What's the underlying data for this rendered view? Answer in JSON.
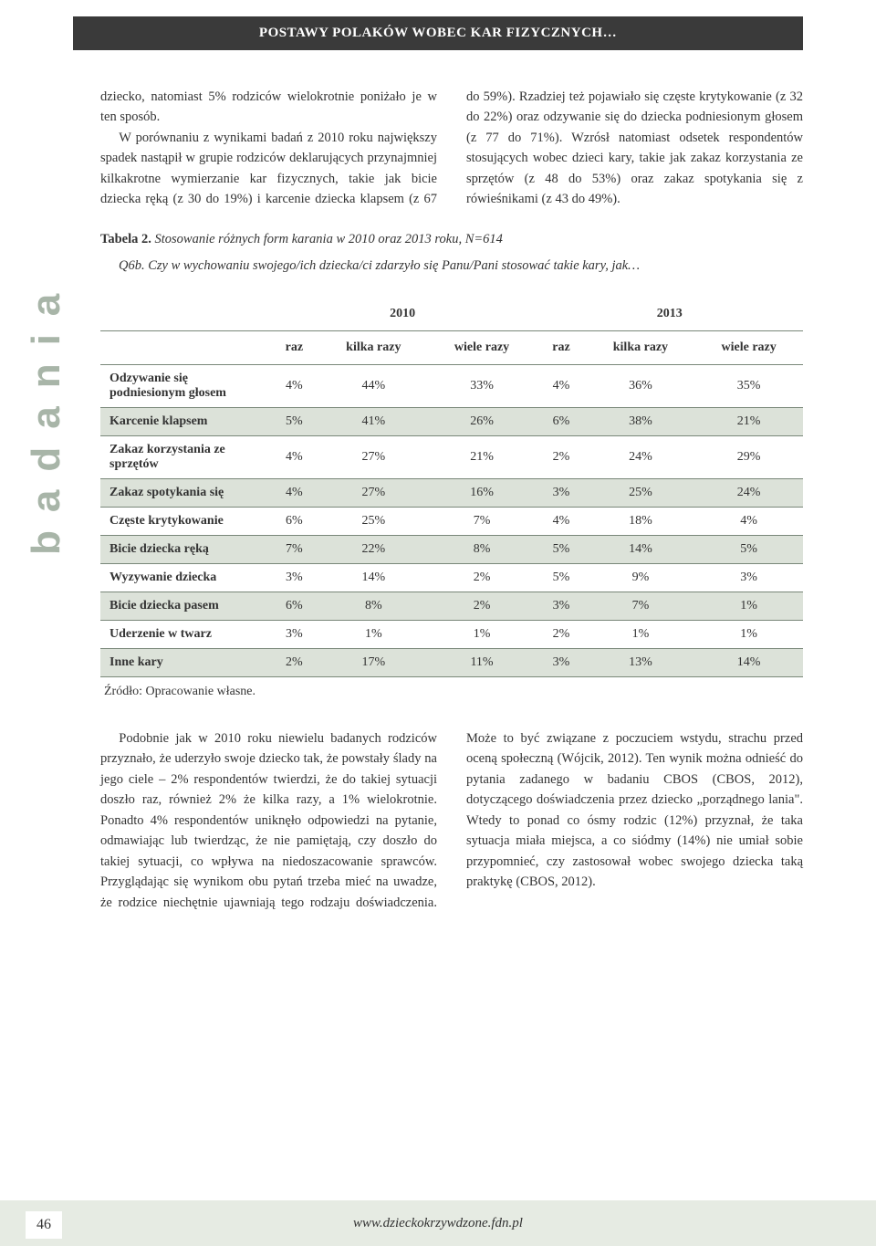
{
  "header": {
    "title": "POSTAWY POLAKÓW WOBEC KAR FIZYCZNYCH…"
  },
  "sideTab": "badania",
  "body": {
    "top_para1": "dziecko, natomiast 5% rodziców wielokrotnie poniżało je w ten sposób.",
    "top_para2": "W porównaniu z wynikami badań z 2010 roku największy spadek nastąpił w grupie rodziców deklarujących przynajmniej kilkakrotne wymierzanie kar fizycznych, takie jak bicie dziecka ręką (z 30 do 19%) i karcenie dziecka klapsem (z 67 do 59%). Rzadziej też pojawiało się częste krytykowanie (z 32 do 22%) oraz odzywanie się do dziecka podniesionym głosem (z 77 do 71%). Wzrósł natomiast odsetek respondentów stosujących wobec dzieci kary, takie jak zakaz korzystania ze sprzętów (z 48 do 53%) oraz zakaz spotykania się z rówieśnikami (z 43 do 49%).",
    "bottom_para1": "Podobnie jak w 2010 roku niewielu badanych rodziców przyznało, że uderzyło swoje dziecko tak, że powstały ślady na jego ciele – 2% respondentów twierdzi, że do takiej sytuacji doszło raz, również 2% że kilka razy, a 1% wielokrotnie. Ponadto 4% respondentów uniknęło odpowiedzi na pytanie, odmawiając lub twierdząc, że nie pamiętają, czy doszło do takiej sytuacji, co wpływa na niedoszacowanie sprawców. Przyglądając się wynikom obu pytań trzeba mieć na uwadze, że rodzice niechętnie ujawniają tego rodzaju doświadczenia. Może to być związane z poczuciem wstydu, strachu przed oceną społeczną (Wójcik, 2012). Ten wynik można odnieść do pytania zadanego w badaniu CBOS (CBOS, 2012), dotyczącego doświadczenia przez dziecko „porządnego lania\". Wtedy to ponad co ósmy rodzic (12%) przyznał, że taka sytuacja miała miejsca, a co siódmy (14%) nie umiał sobie przypomnieć, czy zastosował wobec swojego dziecka taką praktykę (CBOS, 2012)."
  },
  "table": {
    "caption_bold": "Tabela 2. ",
    "caption_ital": "Stosowanie różnych form karania w 2010 oraz 2013 roku, N=614",
    "sub_caption": "Q6b. Czy w wychowaniu swojego/ich dziecka/ci zdarzyło się Panu/Pani stosować takie kary, jak…",
    "source": "Źródło: Opracowanie własne.",
    "year_headers": [
      "2010",
      "2013"
    ],
    "sub_headers": [
      "raz",
      "kilka razy",
      "wiele razy",
      "raz",
      "kilka razy",
      "wiele razy"
    ],
    "rows": [
      {
        "label": "Odzywanie się podniesionym głosem",
        "cells": [
          "4%",
          "44%",
          "33%",
          "4%",
          "36%",
          "35%"
        ],
        "shaded": false
      },
      {
        "label": "Karcenie klapsem",
        "cells": [
          "5%",
          "41%",
          "26%",
          "6%",
          "38%",
          "21%"
        ],
        "shaded": true
      },
      {
        "label": "Zakaz korzystania ze sprzętów",
        "cells": [
          "4%",
          "27%",
          "21%",
          "2%",
          "24%",
          "29%"
        ],
        "shaded": false
      },
      {
        "label": "Zakaz spotykania się",
        "cells": [
          "4%",
          "27%",
          "16%",
          "3%",
          "25%",
          "24%"
        ],
        "shaded": true
      },
      {
        "label": "Częste krytykowanie",
        "cells": [
          "6%",
          "25%",
          "7%",
          "4%",
          "18%",
          "4%"
        ],
        "shaded": false
      },
      {
        "label": "Bicie dziecka ręką",
        "cells": [
          "7%",
          "22%",
          "8%",
          "5%",
          "14%",
          "5%"
        ],
        "shaded": true
      },
      {
        "label": "Wyzywanie dziecka",
        "cells": [
          "3%",
          "14%",
          "2%",
          "5%",
          "9%",
          "3%"
        ],
        "shaded": false
      },
      {
        "label": "Bicie dziecka pasem",
        "cells": [
          "6%",
          "8%",
          "2%",
          "3%",
          "7%",
          "1%"
        ],
        "shaded": true
      },
      {
        "label": "Uderzenie w twarz",
        "cells": [
          "3%",
          "1%",
          "1%",
          "2%",
          "1%",
          "1%"
        ],
        "shaded": false
      },
      {
        "label": "Inne kary",
        "cells": [
          "2%",
          "17%",
          "11%",
          "3%",
          "13%",
          "14%"
        ],
        "shaded": true
      }
    ]
  },
  "footer": {
    "page": "46",
    "url": "www.dzieckokrzywdzone.fdn.pl"
  }
}
